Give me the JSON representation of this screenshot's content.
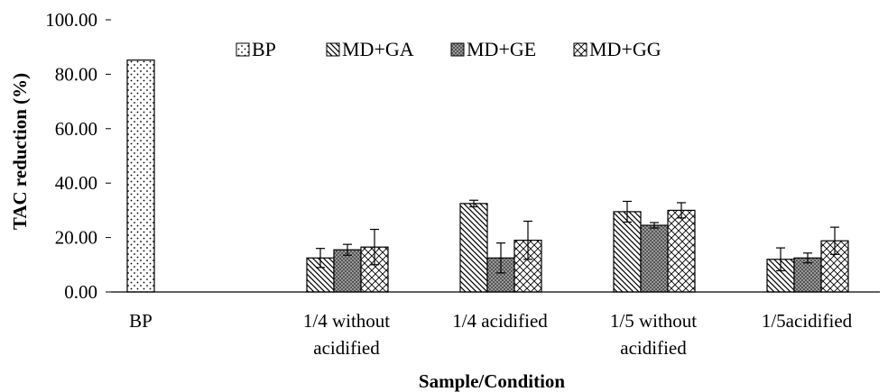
{
  "chart_data": {
    "type": "bar",
    "title": "",
    "xlabel": "Sample/Condition",
    "ylabel": "TAC reduction (%)",
    "ylim": [
      0,
      100
    ],
    "yticks": [
      "0.00",
      "20.00",
      "40.00",
      "60.00",
      "80.00",
      "100.00"
    ],
    "categories": [
      [
        "BP"
      ],
      [
        "1/4 without",
        "acidified"
      ],
      [
        "1/4 acidified"
      ],
      [
        "1/5 without",
        "acidified"
      ],
      [
        "1/5acidified"
      ]
    ],
    "legend_position": "top-center",
    "grid": false,
    "series": [
      {
        "name": "BP",
        "pattern": "dots",
        "values": [
          85.2,
          null,
          null,
          null,
          null
        ],
        "errors": [
          0,
          null,
          null,
          null,
          null
        ]
      },
      {
        "name": "MD+GA",
        "pattern": "diagonal",
        "values": [
          null,
          12.5,
          32.5,
          29.5,
          12.0
        ],
        "errors": [
          null,
          3.5,
          1.2,
          3.8,
          4.2
        ]
      },
      {
        "name": "MD+GE",
        "pattern": "dense-grid",
        "values": [
          null,
          15.5,
          12.5,
          24.5,
          12.5
        ],
        "errors": [
          null,
          2.0,
          5.5,
          1.0,
          1.8
        ]
      },
      {
        "name": "MD+GG",
        "pattern": "crosshatch",
        "values": [
          null,
          16.5,
          19.0,
          30.0,
          18.8
        ],
        "errors": [
          null,
          6.5,
          7.0,
          2.8,
          5.0
        ]
      }
    ]
  }
}
